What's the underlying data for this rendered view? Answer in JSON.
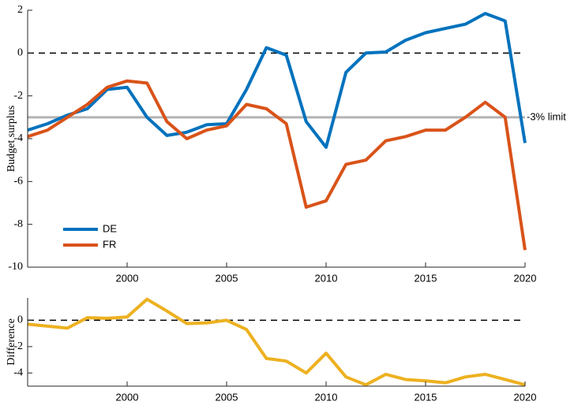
{
  "chart_data": [
    {
      "type": "line",
      "ylabel": "Budget surplus",
      "x": [
        1995,
        1996,
        1997,
        1998,
        1999,
        2000,
        2001,
        2002,
        2003,
        2004,
        2005,
        2006,
        2007,
        2008,
        2009,
        2010,
        2011,
        2012,
        2013,
        2014,
        2015,
        2016,
        2017,
        2018,
        2019,
        2020
      ],
      "series": [
        {
          "name": "DE",
          "color": "#0072bd",
          "values": [
            -3.6,
            -3.3,
            -2.9,
            -2.6,
            -1.7,
            -1.6,
            -3.0,
            -3.85,
            -3.7,
            -3.35,
            -3.3,
            -1.7,
            0.25,
            -0.1,
            -3.2,
            -4.4,
            -0.9,
            0.0,
            0.05,
            0.6,
            0.95,
            1.15,
            1.35,
            1.85,
            1.5,
            -4.2
          ]
        },
        {
          "name": "FR",
          "color": "#d95319",
          "values": [
            -3.9,
            -3.6,
            -3.0,
            -2.4,
            -1.6,
            -1.3,
            -1.4,
            -3.2,
            -4.0,
            -3.6,
            -3.4,
            -2.4,
            -2.6,
            -3.3,
            -7.2,
            -6.9,
            -5.2,
            -5.0,
            -4.1,
            -3.9,
            -3.6,
            -3.6,
            -3.0,
            -2.3,
            -3.0,
            -9.2
          ]
        }
      ],
      "ref_lines": [
        {
          "value": 0,
          "style": "dashed",
          "color": "#000000"
        },
        {
          "value": -3,
          "style": "solid",
          "color": "#b3b3b3",
          "label": "-3% limit"
        }
      ],
      "xlim": [
        1995,
        2020
      ],
      "xticks": [
        2000,
        2005,
        2010,
        2015,
        2020
      ],
      "ylim": [
        -10,
        2
      ],
      "yticks": [
        -10,
        -8,
        -6,
        -4,
        -2,
        0,
        2
      ],
      "legend": "lower left"
    },
    {
      "type": "line",
      "ylabel": "Difference",
      "x": [
        1995,
        1996,
        1997,
        1998,
        1999,
        2000,
        2001,
        2002,
        2003,
        2004,
        2005,
        2006,
        2007,
        2008,
        2009,
        2010,
        2011,
        2012,
        2013,
        2014,
        2015,
        2016,
        2017,
        2018,
        2019,
        2020
      ],
      "series": [
        {
          "color": "#edb120",
          "values": [
            -0.3,
            -0.45,
            -0.6,
            0.2,
            0.15,
            0.25,
            1.6,
            0.7,
            -0.25,
            -0.2,
            0.0,
            -0.7,
            -2.9,
            -3.1,
            -4.0,
            -2.5,
            -4.3,
            -4.9,
            -4.1,
            -4.5,
            -4.6,
            -4.75,
            -4.3,
            -4.1,
            -4.5,
            -4.9
          ]
        }
      ],
      "ref_lines": [
        {
          "value": 0,
          "style": "dashed",
          "color": "#000000"
        }
      ],
      "xlim": [
        1995,
        2020
      ],
      "xticks": [
        2000,
        2005,
        2010,
        2015,
        2020
      ],
      "ylim": [
        -5,
        1.7
      ],
      "yticks": [
        -4,
        -2,
        0
      ]
    }
  ]
}
